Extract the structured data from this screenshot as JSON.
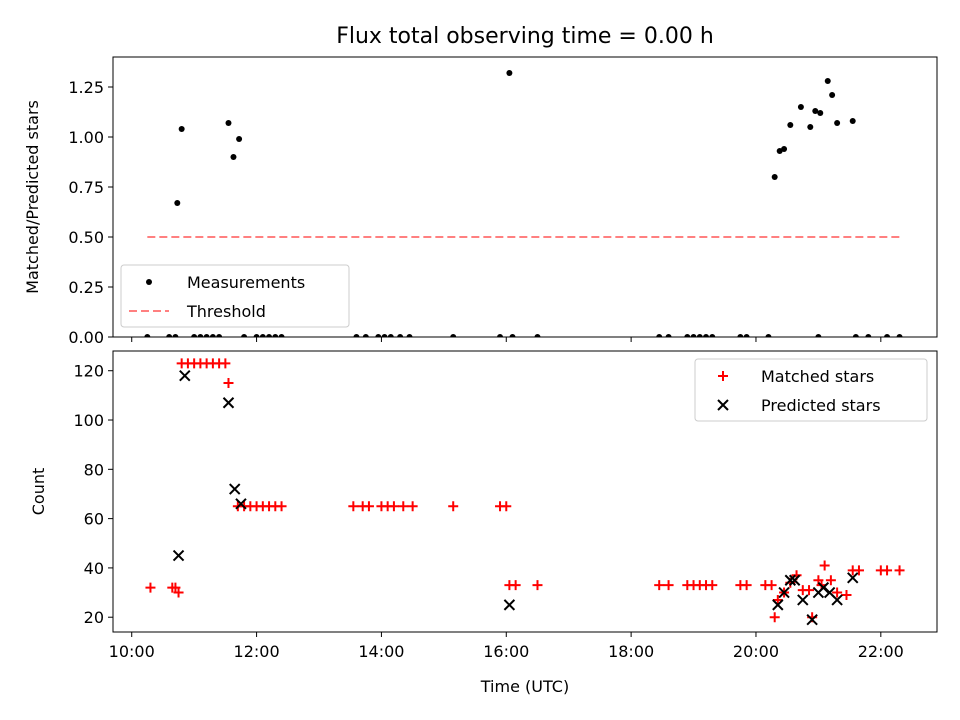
{
  "figure": {
    "title": "Flux total observing time = 0.00 h",
    "xlabel": "Time (UTC)",
    "x_ticks": [
      {
        "value": 10,
        "label": "10:00"
      },
      {
        "value": 12,
        "label": "12:00"
      },
      {
        "value": 14,
        "label": "14:00"
      },
      {
        "value": 16,
        "label": "16:00"
      },
      {
        "value": 18,
        "label": "18:00"
      },
      {
        "value": 20,
        "label": "20:00"
      },
      {
        "value": 22,
        "label": "22:00"
      }
    ]
  },
  "chart_data": [
    {
      "type": "scatter",
      "title": "Flux total observing time = 0.00 h",
      "ylabel": "Matched/Predicted stars",
      "x_unit": "hours (UTC)",
      "xlim": [
        9.7,
        22.9
      ],
      "ylim": [
        0,
        1.4
      ],
      "y_ticks": [
        0.0,
        0.25,
        0.5,
        0.75,
        1.0,
        1.25
      ],
      "y_tick_labels": [
        "0.00",
        "0.25",
        "0.50",
        "0.75",
        "1.00",
        "1.25"
      ],
      "legend": {
        "position": "lower-left",
        "entries": [
          "Measurements",
          "Threshold"
        ]
      },
      "series": [
        {
          "name": "Measurements",
          "style": "dot",
          "color": "#000000",
          "points": [
            [
              10.25,
              0
            ],
            [
              10.6,
              0
            ],
            [
              10.7,
              0
            ],
            [
              10.73,
              0.67
            ],
            [
              10.8,
              1.04
            ],
            [
              11.0,
              0
            ],
            [
              11.1,
              0
            ],
            [
              11.2,
              0
            ],
            [
              11.3,
              0
            ],
            [
              11.4,
              0
            ],
            [
              11.55,
              1.07
            ],
            [
              11.63,
              0.9
            ],
            [
              11.72,
              0.99
            ],
            [
              11.8,
              0
            ],
            [
              12.0,
              0
            ],
            [
              12.1,
              0
            ],
            [
              12.2,
              0
            ],
            [
              12.3,
              0
            ],
            [
              12.4,
              0
            ],
            [
              13.6,
              0
            ],
            [
              13.75,
              0
            ],
            [
              13.95,
              0
            ],
            [
              14.05,
              0
            ],
            [
              14.15,
              0
            ],
            [
              14.3,
              0
            ],
            [
              14.45,
              0
            ],
            [
              15.15,
              0
            ],
            [
              15.9,
              0
            ],
            [
              16.05,
              1.32
            ],
            [
              16.1,
              0
            ],
            [
              16.5,
              0
            ],
            [
              18.45,
              0
            ],
            [
              18.6,
              0
            ],
            [
              18.9,
              0
            ],
            [
              19.0,
              0
            ],
            [
              19.1,
              0
            ],
            [
              19.2,
              0
            ],
            [
              19.3,
              0
            ],
            [
              19.75,
              0
            ],
            [
              19.85,
              0
            ],
            [
              20.2,
              0
            ],
            [
              20.3,
              0.8
            ],
            [
              20.38,
              0.93
            ],
            [
              20.45,
              0.94
            ],
            [
              20.55,
              1.06
            ],
            [
              20.72,
              1.15
            ],
            [
              20.87,
              1.05
            ],
            [
              20.95,
              1.13
            ],
            [
              21.03,
              1.12
            ],
            [
              21.15,
              1.28
            ],
            [
              21.22,
              1.21
            ],
            [
              21.3,
              1.07
            ],
            [
              21.55,
              1.08
            ],
            [
              21.0,
              0
            ],
            [
              21.6,
              0
            ],
            [
              21.8,
              0
            ],
            [
              22.1,
              0
            ],
            [
              22.3,
              0
            ]
          ]
        },
        {
          "name": "Threshold",
          "style": "dashed-line",
          "color": "#ff8080",
          "points": [
            [
              10.25,
              0.5
            ],
            [
              22.3,
              0.5
            ]
          ]
        }
      ]
    },
    {
      "type": "scatter",
      "ylabel": "Count",
      "xlabel": "Time (UTC)",
      "x_unit": "hours (UTC)",
      "xlim": [
        9.7,
        22.9
      ],
      "ylim": [
        14,
        128
      ],
      "y_ticks": [
        20,
        40,
        60,
        80,
        100,
        120
      ],
      "y_tick_labels": [
        "20",
        "40",
        "60",
        "80",
        "100",
        "120"
      ],
      "legend": {
        "position": "upper-right",
        "entries": [
          "Matched stars",
          "Predicted stars"
        ]
      },
      "series": [
        {
          "name": "Matched stars",
          "marker": "plus",
          "color": "#ff0000",
          "points": [
            [
              10.3,
              32
            ],
            [
              10.65,
              32
            ],
            [
              10.7,
              32
            ],
            [
              10.75,
              30
            ],
            [
              10.8,
              123
            ],
            [
              10.9,
              123
            ],
            [
              11.0,
              123
            ],
            [
              11.1,
              123
            ],
            [
              11.2,
              123
            ],
            [
              11.3,
              123
            ],
            [
              11.4,
              123
            ],
            [
              11.5,
              123
            ],
            [
              11.55,
              115
            ],
            [
              11.7,
              65
            ],
            [
              11.8,
              65
            ],
            [
              11.9,
              65
            ],
            [
              12.0,
              65
            ],
            [
              12.1,
              65
            ],
            [
              12.2,
              65
            ],
            [
              12.3,
              65
            ],
            [
              12.4,
              65
            ],
            [
              13.55,
              65
            ],
            [
              13.7,
              65
            ],
            [
              13.8,
              65
            ],
            [
              14.0,
              65
            ],
            [
              14.1,
              65
            ],
            [
              14.2,
              65
            ],
            [
              14.35,
              65
            ],
            [
              14.5,
              65
            ],
            [
              15.15,
              65
            ],
            [
              15.9,
              65
            ],
            [
              16.0,
              65
            ],
            [
              16.05,
              33
            ],
            [
              16.15,
              33
            ],
            [
              16.5,
              33
            ],
            [
              18.45,
              33
            ],
            [
              18.6,
              33
            ],
            [
              18.9,
              33
            ],
            [
              19.0,
              33
            ],
            [
              19.1,
              33
            ],
            [
              19.2,
              33
            ],
            [
              19.3,
              33
            ],
            [
              19.75,
              33
            ],
            [
              19.85,
              33
            ],
            [
              20.15,
              33
            ],
            [
              20.25,
              33
            ],
            [
              20.3,
              20
            ],
            [
              20.35,
              27
            ],
            [
              20.45,
              30
            ],
            [
              20.55,
              34
            ],
            [
              20.65,
              37
            ],
            [
              20.75,
              31
            ],
            [
              20.85,
              31
            ],
            [
              20.9,
              20
            ],
            [
              21.0,
              35
            ],
            [
              21.05,
              33
            ],
            [
              21.1,
              41
            ],
            [
              21.2,
              35
            ],
            [
              21.3,
              30
            ],
            [
              21.45,
              29
            ],
            [
              21.55,
              39
            ],
            [
              21.65,
              39
            ],
            [
              22.0,
              39
            ],
            [
              22.1,
              39
            ],
            [
              22.3,
              39
            ]
          ]
        },
        {
          "name": "Predicted stars",
          "marker": "x",
          "color": "#000000",
          "points": [
            [
              10.75,
              45
            ],
            [
              10.85,
              118
            ],
            [
              11.55,
              107
            ],
            [
              11.65,
              72
            ],
            [
              11.75,
              66
            ],
            [
              16.05,
              25
            ],
            [
              20.35,
              25
            ],
            [
              20.45,
              30
            ],
            [
              20.55,
              35
            ],
            [
              20.62,
              35
            ],
            [
              20.75,
              27
            ],
            [
              20.9,
              19
            ],
            [
              21.0,
              30
            ],
            [
              21.08,
              32
            ],
            [
              21.18,
              30
            ],
            [
              21.3,
              27
            ],
            [
              21.55,
              36
            ]
          ]
        }
      ]
    }
  ]
}
